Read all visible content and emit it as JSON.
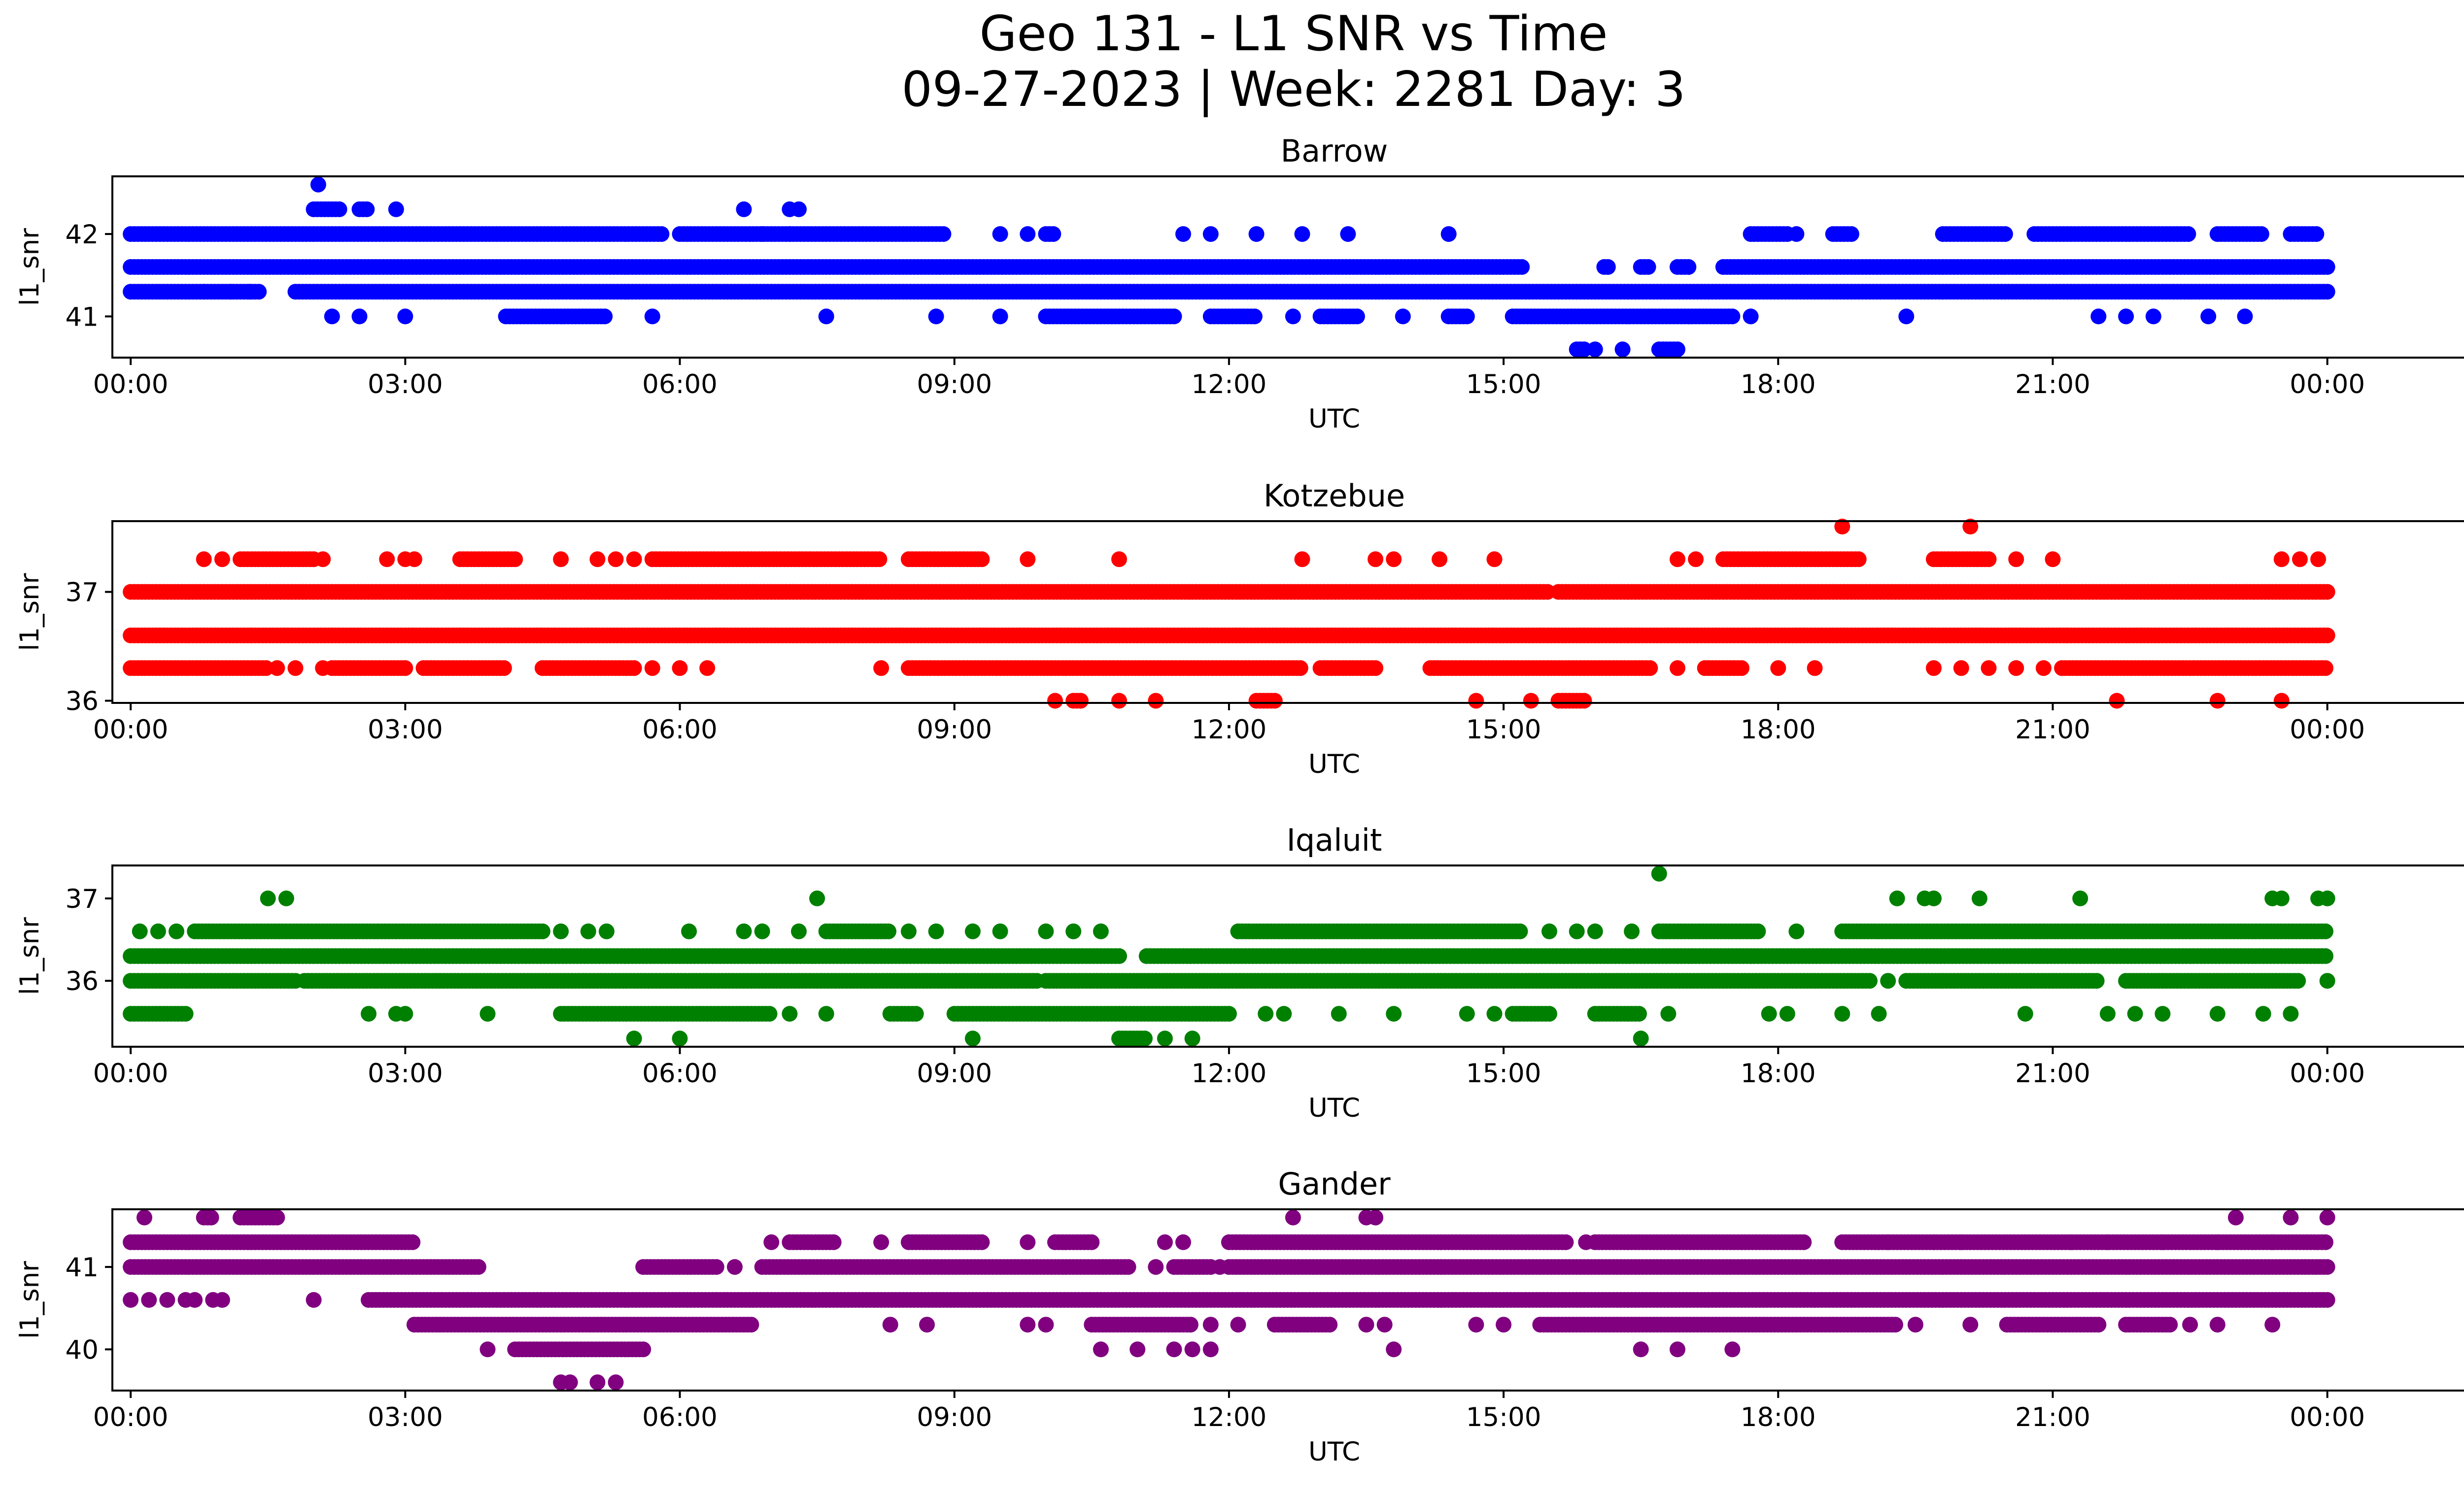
{
  "figure": {
    "title_line1": "Geo 131 - L1 SNR vs Time",
    "title_line2": "09-27-2023 | Week: 2281 Day: 3"
  },
  "chart_data": [
    {
      "type": "scatter",
      "title": "Barrow",
      "color": "#0000ff",
      "xlabel": "UTC",
      "ylabel": "l1_snr",
      "xlim": [
        -0.2,
        26.5
      ],
      "x_tick_hours": [
        0,
        3,
        6,
        9,
        12,
        15,
        18,
        21,
        24
      ],
      "x_tick_labels": [
        "00:00",
        "03:00",
        "06:00",
        "09:00",
        "12:00",
        "15:00",
        "18:00",
        "21:00",
        "00:00"
      ],
      "ylim": [
        40.5,
        42.7
      ],
      "y_ticks": [
        41,
        42
      ],
      "y_tick_labels": [
        "41",
        "42"
      ],
      "series": [
        {
          "y": 41.6,
          "ranges": [
            [
              0,
              15.2
            ],
            [
              16.1,
              16.15
            ],
            [
              16.5,
              16.6
            ],
            [
              16.9,
              17.05
            ],
            [
              17.4,
              24
            ]
          ]
        },
        {
          "y": 41.3,
          "ranges": [
            [
              0,
              1.4
            ],
            [
              1.8,
              24
            ]
          ],
          "points": [
            0.8,
            1.1,
            1.3
          ]
        },
        {
          "y": 42.0,
          "ranges": [
            [
              0,
              5.8
            ],
            [
              6.0,
              8.9
            ],
            [
              10.0,
              10.1
            ],
            [
              17.7,
              18.1
            ],
            [
              18.6,
              18.8
            ],
            [
              19.8,
              20.5
            ],
            [
              20.8,
              22.5
            ],
            [
              22.8,
              23.3
            ],
            [
              23.6,
              23.9
            ]
          ],
          "points": [
            6.9,
            7.2,
            9.5,
            9.8,
            11.5,
            11.8,
            12.3,
            12.8,
            13.3,
            14.4,
            18.2
          ]
        },
        {
          "y": 41.0,
          "ranges": [
            [
              4.1,
              5.2
            ],
            [
              10.0,
              11.4
            ],
            [
              11.8,
              12.3
            ],
            [
              13.0,
              13.4
            ],
            [
              14.4,
              14.6
            ],
            [
              15.1,
              17.5
            ]
          ],
          "points": [
            2.2,
            2.5,
            3.0,
            5.7,
            7.6,
            8.8,
            9.5,
            12.7,
            13.9,
            17.7,
            19.4,
            21.5,
            21.8,
            22.1,
            22.7,
            23.1
          ]
        },
        {
          "y": 42.3,
          "ranges": [
            [
              2.0,
              2.3
            ],
            [
              2.5,
              2.6
            ]
          ],
          "points": [
            2.9,
            6.7,
            7.2,
            7.3
          ]
        },
        {
          "y": 42.6,
          "ranges": [],
          "points": [
            2.05
          ]
        },
        {
          "y": 40.6,
          "ranges": [
            [
              15.8,
              15.9
            ],
            [
              16.7,
              16.9
            ]
          ],
          "points": [
            16.0,
            16.3
          ]
        }
      ]
    },
    {
      "type": "scatter",
      "title": "Kotzebue",
      "color": "#ff0000",
      "xlabel": "UTC",
      "ylabel": "l1_snr",
      "xlim": [
        -0.2,
        26.5
      ],
      "x_tick_hours": [
        0,
        3,
        6,
        9,
        12,
        15,
        18,
        21,
        24
      ],
      "x_tick_labels": [
        "00:00",
        "03:00",
        "06:00",
        "09:00",
        "12:00",
        "15:00",
        "18:00",
        "21:00",
        "00:00"
      ],
      "ylim": [
        35.98,
        37.65
      ],
      "y_ticks": [
        36,
        37
      ],
      "y_tick_labels": [
        "36",
        "37"
      ],
      "series": [
        {
          "y": 36.6,
          "ranges": [
            [
              0,
              24
            ]
          ]
        },
        {
          "y": 37.0,
          "ranges": [
            [
              0,
              15.5
            ],
            [
              15.6,
              24
            ]
          ]
        },
        {
          "y": 36.3,
          "ranges": [
            [
              0,
              1.5
            ],
            [
              2.2,
              3.0
            ],
            [
              3.2,
              4.1
            ],
            [
              4.5,
              5.5
            ],
            [
              8.5,
              12.8
            ],
            [
              13.0,
              13.6
            ],
            [
              14.2,
              16.6
            ],
            [
              17.2,
              17.6
            ],
            [
              21.1,
              24
            ]
          ],
          "points": [
            1.6,
            1.8,
            2.1,
            5.7,
            6.0,
            6.3,
            8.2,
            16.9,
            18.0,
            18.4,
            19.7,
            20.0,
            20.3,
            20.6,
            20.9
          ]
        },
        {
          "y": 37.3,
          "ranges": [
            [
              1.2,
              2.0
            ],
            [
              3.6,
              4.2
            ],
            [
              5.7,
              8.2
            ],
            [
              8.5,
              9.3
            ],
            [
              17.4,
              18.9
            ],
            [
              19.7,
              20.3
            ]
          ],
          "points": [
            0.8,
            1.0,
            2.1,
            2.8,
            3.0,
            3.1,
            4.7,
            5.1,
            5.3,
            5.5,
            9.8,
            10.8,
            12.8,
            13.6,
            13.8,
            14.3,
            14.9,
            16.9,
            17.1,
            20.6,
            21.0,
            23.5,
            23.7,
            23.9
          ]
        },
        {
          "y": 36.0,
          "ranges": [
            [
              10.3,
              10.4
            ],
            [
              12.3,
              12.5
            ],
            [
              15.6,
              15.9
            ]
          ],
          "points": [
            10.1,
            10.8,
            11.2,
            14.7,
            15.3,
            21.7,
            22.8,
            23.5
          ]
        },
        {
          "y": 37.6,
          "ranges": [],
          "points": [
            18.7,
            20.1
          ]
        }
      ]
    },
    {
      "type": "scatter",
      "title": "Iqaluit",
      "color": "#008000",
      "xlabel": "UTC",
      "ylabel": "l1_snr",
      "xlim": [
        -0.2,
        26.5
      ],
      "x_tick_hours": [
        0,
        3,
        6,
        9,
        12,
        15,
        18,
        21,
        24
      ],
      "x_tick_labels": [
        "00:00",
        "03:00",
        "06:00",
        "09:00",
        "12:00",
        "15:00",
        "18:00",
        "21:00",
        "00:00"
      ],
      "ylim": [
        35.2,
        37.4
      ],
      "y_ticks": [
        36,
        37
      ],
      "y_tick_labels": [
        "36",
        "37"
      ],
      "series": [
        {
          "y": 36.3,
          "ranges": [
            [
              0,
              10.8
            ],
            [
              11.1,
              24
            ]
          ]
        },
        {
          "y": 36.0,
          "ranges": [
            [
              0,
              1.8
            ],
            [
              1.9,
              9.9
            ],
            [
              10.0,
              19.0
            ],
            [
              19.4,
              21.5
            ],
            [
              21.8,
              23.7
            ]
          ],
          "points": [
            19.2,
            24.0
          ]
        },
        {
          "y": 36.6,
          "ranges": [
            [
              0.7,
              4.5
            ],
            [
              7.6,
              8.3
            ],
            [
              12.1,
              15.2
            ],
            [
              16.7,
              17.8
            ],
            [
              18.7,
              24
            ]
          ],
          "points": [
            0.1,
            0.3,
            0.5,
            4.7,
            5.0,
            5.2,
            6.1,
            6.7,
            6.9,
            7.3,
            8.5,
            8.8,
            9.2,
            9.5,
            10.0,
            10.3,
            10.6,
            15.5,
            15.8,
            16.0,
            16.4,
            18.2
          ]
        },
        {
          "y": 35.6,
          "ranges": [
            [
              0,
              0.6
            ],
            [
              4.7,
              7.0
            ],
            [
              8.3,
              8.6
            ],
            [
              9.0,
              12.0
            ],
            [
              15.1,
              15.5
            ],
            [
              16.0,
              16.5
            ]
          ],
          "points": [
            2.6,
            2.9,
            3.0,
            3.9,
            7.2,
            7.6,
            12.4,
            12.6,
            13.2,
            13.8,
            14.6,
            14.9,
            16.8,
            17.9,
            18.1,
            18.7,
            19.1,
            20.7,
            21.6,
            21.9,
            22.2,
            22.8,
            23.3,
            23.6
          ]
        },
        {
          "y": 35.3,
          "ranges": [
            [
              10.8,
              11.1
            ]
          ],
          "points": [
            5.5,
            6.0,
            9.2,
            11.3,
            11.6,
            16.5
          ]
        },
        {
          "y": 37.0,
          "ranges": [],
          "points": [
            1.5,
            1.7,
            7.5,
            19.3,
            19.6,
            19.7,
            20.2,
            21.3,
            23.4,
            23.5,
            23.9,
            24.0
          ]
        },
        {
          "y": 37.3,
          "ranges": [],
          "points": [
            16.7
          ]
        }
      ]
    },
    {
      "type": "scatter",
      "title": "Gander",
      "color": "#800080",
      "xlabel": "UTC",
      "ylabel": "l1_snr",
      "xlim": [
        -0.2,
        26.5
      ],
      "x_tick_hours": [
        0,
        3,
        6,
        9,
        12,
        15,
        18,
        21,
        24
      ],
      "x_tick_labels": [
        "00:00",
        "03:00",
        "06:00",
        "09:00",
        "12:00",
        "15:00",
        "18:00",
        "21:00",
        "00:00"
      ],
      "ylim": [
        39.5,
        41.7
      ],
      "y_ticks": [
        40,
        41
      ],
      "y_tick_labels": [
        "40",
        "41"
      ],
      "series": [
        {
          "y": 41.3,
          "ranges": [
            [
              0,
              3.1
            ],
            [
              7.2,
              7.7
            ],
            [
              8.5,
              9.3
            ],
            [
              10.1,
              10.5
            ],
            [
              12.0,
              15.7
            ],
            [
              16.0,
              18.3
            ],
            [
              18.7,
              24
            ]
          ],
          "points": [
            7.0,
            8.2,
            9.8,
            11.3,
            11.5,
            15.9,
            19.2,
            19.7,
            20.0,
            21.2,
            21.6,
            22.2,
            22.8,
            23.4
          ]
        },
        {
          "y": 41.0,
          "ranges": [
            [
              0,
              3.8
            ],
            [
              5.6,
              6.4
            ],
            [
              6.9,
              10.9
            ],
            [
              11.4,
              11.8
            ],
            [
              12.0,
              24
            ]
          ],
          "points": [
            6.6,
            11.2,
            11.9
          ]
        },
        {
          "y": 40.6,
          "ranges": [
            [
              2.6,
              24
            ]
          ],
          "points": [
            0.0,
            0.2,
            0.4,
            0.6,
            0.7,
            0.9,
            1.0,
            2.0
          ]
        },
        {
          "y": 40.3,
          "ranges": [
            [
              3.1,
              6.8
            ],
            [
              10.5,
              11.6
            ],
            [
              12.5,
              13.1
            ],
            [
              15.4,
              19.3
            ],
            [
              20.5,
              21.5
            ],
            [
              21.8,
              22.3
            ]
          ],
          "points": [
            8.3,
            8.7,
            9.8,
            10.0,
            11.8,
            12.1,
            13.5,
            13.7,
            14.7,
            15.0,
            19.5,
            20.1,
            22.5,
            22.8,
            23.4
          ]
        },
        {
          "y": 40.0,
          "ranges": [
            [
              4.2,
              5.6
            ]
          ],
          "points": [
            3.9,
            10.6,
            11.0,
            11.4,
            11.6,
            11.8,
            13.8,
            16.5,
            16.9,
            17.5
          ]
        },
        {
          "y": 41.6,
          "ranges": [
            [
              0.8,
              0.9
            ],
            [
              1.2,
              1.6
            ]
          ],
          "points": [
            0.15,
            12.7,
            13.5,
            13.6,
            23.0,
            23.6,
            24.0
          ]
        },
        {
          "y": 39.6,
          "ranges": [],
          "points": [
            4.7,
            4.8,
            5.1,
            5.3
          ]
        }
      ]
    }
  ]
}
